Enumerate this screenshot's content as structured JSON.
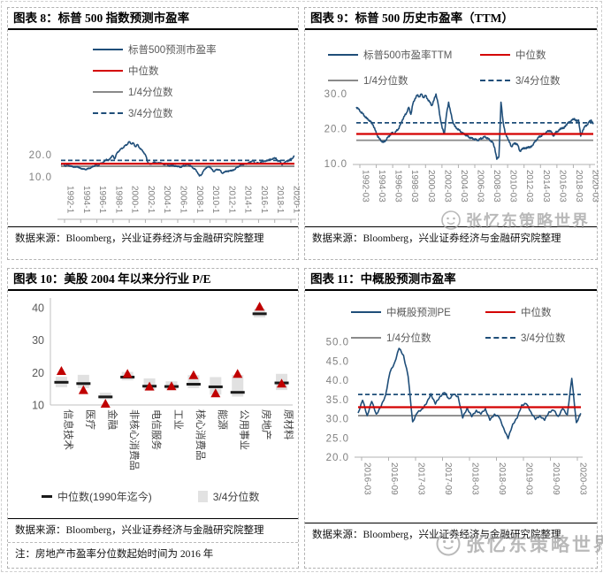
{
  "watermark": {
    "text": "张忆东策略世界"
  },
  "colors": {
    "series_blue": "#1F4E79",
    "median_red": "#D40000",
    "quartile1_gray": "#8a8a8a",
    "quartile3_dashed_blue": "#1F4E79",
    "triangle_red": "#C00000",
    "box_gray": "#DCDCDC",
    "median_dash_black": "#1A1A1A",
    "axis_text_gray": "#808080"
  },
  "panels": [
    {
      "title": "图表 8：标普 500 指数预测市盈率",
      "legend": [
        {
          "label": "标普500预测市盈率",
          "icon": "line-blue"
        },
        {
          "label": "中位数",
          "icon": "line-red"
        },
        {
          "label": "1/4分位数",
          "icon": "line-gray"
        },
        {
          "label": "3/4分位数",
          "icon": "line-dash"
        }
      ],
      "source": "数据来源：Bloomberg，兴业证券经济与金融研究院整理"
    },
    {
      "title": "图表 9：标普 500 历史市盈率（TTM）",
      "legend": [
        {
          "label": "标普500市盈率TTM",
          "icon": "line-blue"
        },
        {
          "label": "中位数",
          "icon": "line-red"
        },
        {
          "label": "1/4分位数",
          "icon": "line-gray"
        },
        {
          "label": "3/4分位数",
          "icon": "line-dash"
        }
      ],
      "source": "数据来源：Bloomberg，兴业证券经济与金融研究院整理"
    },
    {
      "title": "图表 10：美股 2004 年以来分行业 P/E",
      "legend": [
        {
          "label": "中位数(1990年迄今)",
          "icon": "dash-black"
        },
        {
          "label": "3/4分位数",
          "icon": "box-gray"
        }
      ],
      "source": "数据来源：Bloomberg，兴业证券经济与金融研究院整理",
      "note": "注：房地产市盈率分位数起始时间为 2016 年"
    },
    {
      "title": "图表 11：中概股预测市盈率",
      "legend": [
        {
          "label": "中概股预测PE",
          "icon": "line-blue"
        },
        {
          "label": "中位数",
          "icon": "line-red"
        },
        {
          "label": "1/4分位数",
          "icon": "line-gray"
        },
        {
          "label": "3/4分位数",
          "icon": "line-dash"
        }
      ],
      "source": "数据来源：Bloomberg，兴业证券经济与金融研究院整理"
    }
  ],
  "chart_data": [
    {
      "type": "line",
      "title": "标普500指数预测市盈率",
      "series_name": "标普500预测市盈率",
      "x_start": "1992-01",
      "x_end": "2020-03",
      "xtick_labels": [
        "1992-1",
        "1994-1",
        "1996-1",
        "1998-1",
        "2000-1",
        "2002-1",
        "2004-1",
        "2006-1",
        "2008-1",
        "2010-1",
        "2012-1",
        "2014-1",
        "2016-1",
        "2018-1",
        "2020-1"
      ],
      "yticks": [
        20,
        10
      ],
      "ytick_labels": [
        "20.0",
        "10.0"
      ],
      "ylim": [
        7.5,
        29.2
      ],
      "grid": false,
      "legend_position": "top-center",
      "refs": {
        "median": 15.9,
        "q1": 14.7,
        "q3": 17.4
      },
      "values": [
        15.6,
        15.9,
        14.9,
        15.3,
        15.1,
        14.7,
        14.5,
        14.3,
        14.6,
        13.9,
        13.7,
        13.4,
        13.3,
        13.6,
        13.9,
        14.3,
        14.9,
        15.3,
        15.0,
        15.9,
        16.3,
        16.9,
        17.9,
        17.3,
        18.6,
        19.6,
        18.1,
        20.6,
        21.6,
        22.6,
        23.1,
        24.1,
        24.6,
        25.9,
        24.9,
        25.3,
        23.6,
        24.6,
        23.1,
        22.2,
        21.1,
        19.6,
        16.6,
        15.6,
        15.9,
        16.6,
        16.3,
        16.1,
        16.4,
        15.9,
        15.5,
        15.7,
        15.1,
        14.9,
        15.3,
        14.7,
        14.9,
        14.5,
        14.3,
        14.9,
        15.1,
        15.5,
        15.3,
        14.7,
        13.9,
        13.3,
        12.1,
        10.3,
        10.9,
        12.6,
        13.9,
        14.3,
        14.6,
        13.3,
        12.3,
        13.1,
        13.3,
        12.9,
        11.6,
        11.9,
        12.6,
        12.3,
        12.9,
        12.7,
        13.3,
        14.1,
        14.6,
        15.3,
        15.5,
        15.7,
        15.9,
        16.3,
        16.9,
        17.3,
        15.9,
        16.3,
        16.1,
        16.6,
        17.1,
        16.9,
        17.5,
        17.7,
        17.9,
        18.3,
        18.5,
        16.9,
        17.3,
        15.3,
        16.3,
        16.9,
        17.1,
        17.9,
        18.3,
        19.5
      ]
    },
    {
      "type": "line",
      "title": "标普500历史市盈率（TTM）",
      "series_name": "标普500市盈率TTM",
      "x_start": "1992-03",
      "x_end": "2020-03",
      "xtick_labels": [
        "1992-03",
        "1994-03",
        "1996-03",
        "1998-03",
        "2000-03",
        "2002-03",
        "2004-03",
        "2006-03",
        "2008-03",
        "2010-03",
        "2012-03",
        "2014-03",
        "2016-03",
        "2018-03",
        "2020-03"
      ],
      "yticks": [
        30,
        20,
        10
      ],
      "ytick_labels": [
        "30.0",
        "20.0",
        "10.0"
      ],
      "ylim": [
        9.8,
        31.5
      ],
      "grid": false,
      "legend_position": "top-center",
      "refs": {
        "median": 18.5,
        "q1": 16.7,
        "q3": 21.7
      },
      "values": [
        26.2,
        25.6,
        24.9,
        24.3,
        23.6,
        22.9,
        22.5,
        21.9,
        21.1,
        19.6,
        18.1,
        17.1,
        16.5,
        16.1,
        16.7,
        17.5,
        18.1,
        18.9,
        18.5,
        19.3,
        19.9,
        21.1,
        22.6,
        23.6,
        24.6,
        26.1,
        24.1,
        27.1,
        28.6,
        29.6,
        29.1,
        29.9,
        28.9,
        29.5,
        28.5,
        27.6,
        26.6,
        28.1,
        29.9,
        27.1,
        23.1,
        20.1,
        18.6,
        24.1,
        27.6,
        24.6,
        22.1,
        20.6,
        20.1,
        19.6,
        19.1,
        18.6,
        18.3,
        17.9,
        17.5,
        17.3,
        17.1,
        16.9,
        16.7,
        17.1,
        17.3,
        17.7,
        17.5,
        17.1,
        16.6,
        16.1,
        14.6,
        11.3,
        12.1,
        27.6,
        22.1,
        18.6,
        17.6,
        16.1,
        14.9,
        15.6,
        15.9,
        15.3,
        13.6,
        14.1,
        14.6,
        14.3,
        14.9,
        14.6,
        15.3,
        16.1,
        16.9,
        17.6,
        17.9,
        18.3,
        18.7,
        19.1,
        19.5,
        19.1,
        17.9,
        18.9,
        19.3,
        19.7,
        20.3,
        20.1,
        21.1,
        21.6,
        22.1,
        22.5,
        22.9,
        22.1,
        22.5,
        17.9,
        19.6,
        20.6,
        21.1,
        21.9,
        22.5,
        21.3
      ]
    },
    {
      "type": "box-median-current",
      "title": "美股2004年以来分行业P/E",
      "categories": [
        "信息技术",
        "医疗",
        "金融",
        "非核心消费品",
        "电信服务",
        "工业",
        "核心消费品",
        "能源",
        "公用事业",
        "房地产",
        "原材料"
      ],
      "yticks": [
        40,
        30,
        20,
        10
      ],
      "ytick_labels": [
        "40",
        "30",
        "20",
        "10"
      ],
      "ylim": [
        9,
        43.5
      ],
      "grid": false,
      "legend_position": "bottom",
      "series": {
        "q1": [
          15.5,
          15.2,
          11.8,
          17.6,
          14.6,
          14.8,
          15.2,
          13.2,
          12.6,
          37.0,
          14.6
        ],
        "q3": [
          18.7,
          19.3,
          13.8,
          20.2,
          18.2,
          17.3,
          19.2,
          18.6,
          19.3,
          39.6,
          19.6
        ],
        "median": [
          17.0,
          16.6,
          12.5,
          18.6,
          15.8,
          15.7,
          16.4,
          15.6,
          13.9,
          38.1,
          16.8
        ],
        "current": [
          20.5,
          14.6,
          10.4,
          19.6,
          15.7,
          15.8,
          19.2,
          13.6,
          19.6,
          40.3,
          16.6
        ]
      }
    },
    {
      "type": "line",
      "title": "中概股预测市盈率",
      "series_name": "中概股预测PE",
      "x_start": "2016-03",
      "x_end": "2020-03",
      "xtick_labels": [
        "2016-03",
        "2016-09",
        "2017-03",
        "2017-09",
        "2018-03",
        "2018-09",
        "2019-03",
        "2019-09",
        "2020-03"
      ],
      "yticks": [
        50,
        45,
        40,
        35,
        30,
        25,
        20
      ],
      "ytick_labels": [
        "50.0",
        "45.0",
        "40.0",
        "35.0",
        "30.0",
        "25.0",
        "20.0"
      ],
      "ylim": [
        20,
        52.2
      ],
      "grid": false,
      "legend_position": "top-center",
      "refs": {
        "median": 33.0,
        "q1": 30.8,
        "q3": 36.3
      },
      "values": [
        31.5,
        34.8,
        30.8,
        34.5,
        31.2,
        33.0,
        36.0,
        42.0,
        44.5,
        48.3,
        46.5,
        41.0,
        29.2,
        31.5,
        32.5,
        33.8,
        36.5,
        33.8,
        35.8,
        36.8,
        35.2,
        36.3,
        35.8,
        30.2,
        32.8,
        30.5,
        32.2,
        31.2,
        32.6,
        29.6,
        31.2,
        30.4,
        27.6,
        24.8,
        28.6,
        30.2,
        33.6,
        33.9,
        31.8,
        29.8,
        30.8,
        29.6,
        31.8,
        32.2,
        30.6,
        32.6,
        31.0,
        40.5,
        29.0,
        31.4
      ]
    }
  ]
}
